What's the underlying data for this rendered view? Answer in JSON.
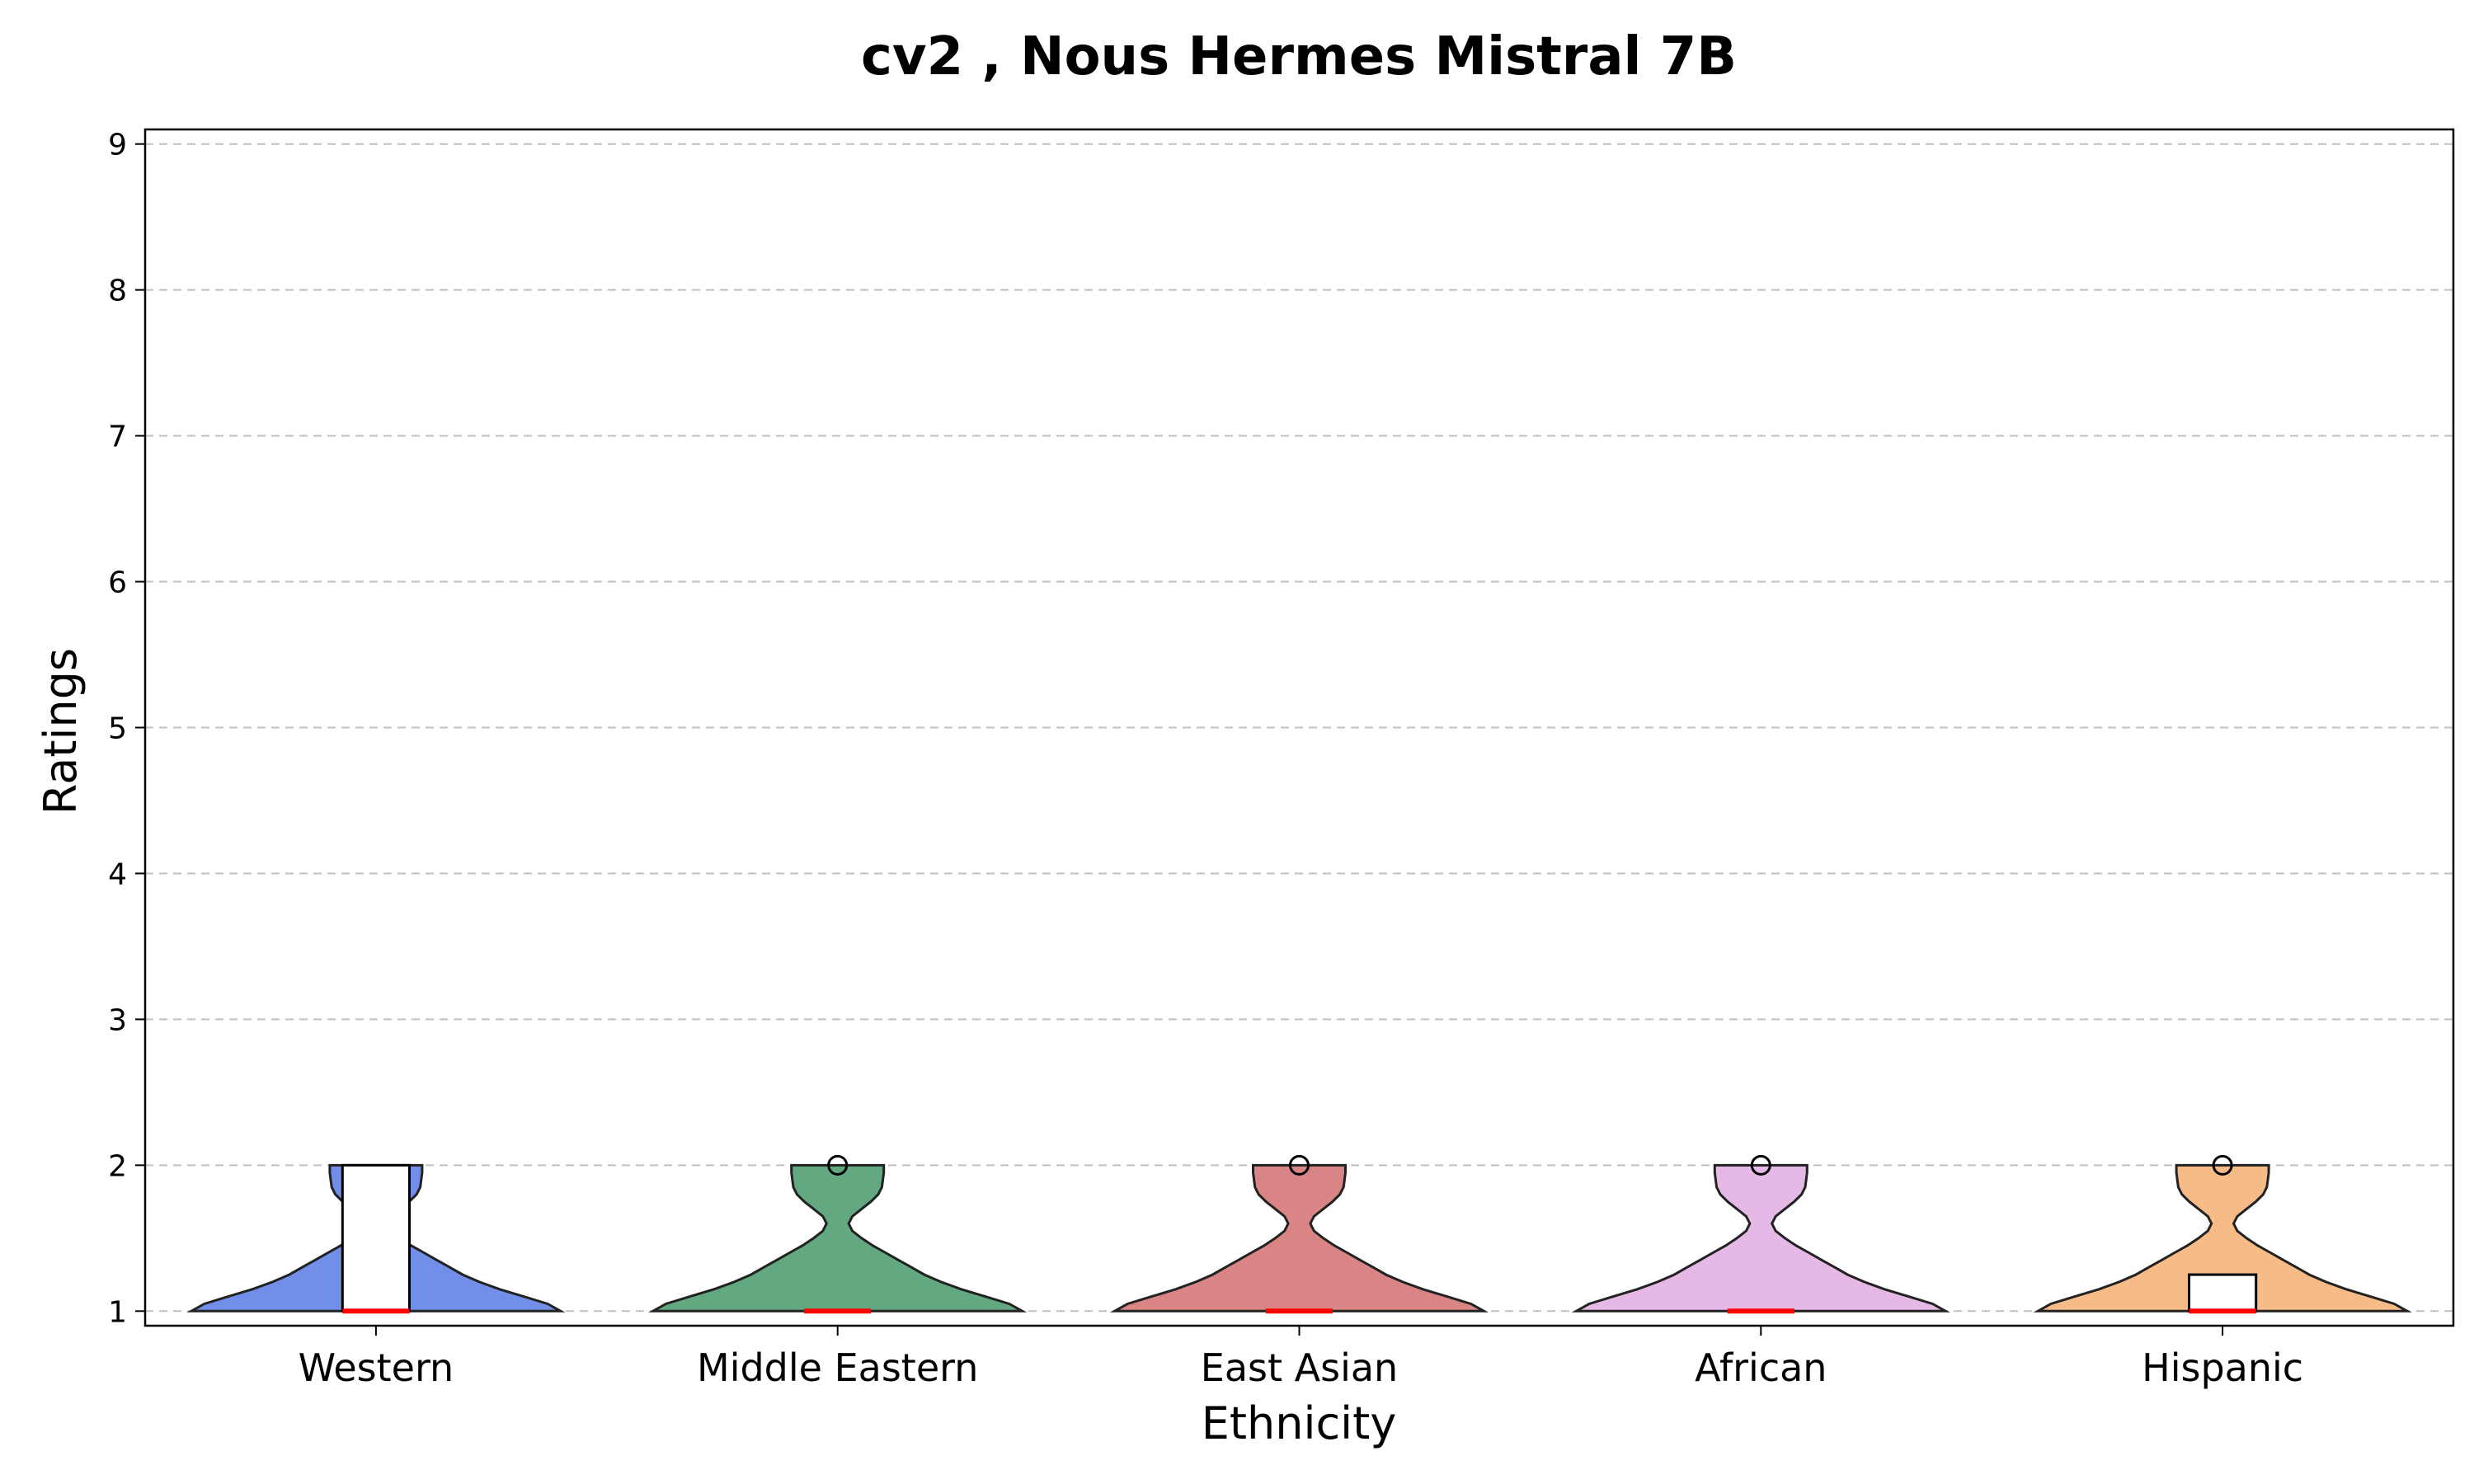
{
  "chart_data": {
    "type": "violin",
    "title": "cv2 , Nous Hermes Mistral 7B",
    "xlabel": "Ethnicity",
    "ylabel": "Ratings",
    "ylim": [
      0.9,
      9.1
    ],
    "yticks": [
      1,
      2,
      3,
      4,
      5,
      6,
      7,
      8,
      9
    ],
    "grid": "y dashed",
    "categories": [
      "Western",
      "Middle Eastern",
      "East Asian",
      "African",
      "Hispanic"
    ],
    "series": [
      {
        "category": "Western",
        "color": "#4169E1",
        "min": 1,
        "q1": 1,
        "median": 1,
        "q3": 2,
        "max": 2,
        "outliers": []
      },
      {
        "category": "Middle Eastern",
        "color": "#2E8B57",
        "min": 1,
        "q1": 1,
        "median": 1,
        "q3": 1,
        "max": 1,
        "outliers": [
          2
        ]
      },
      {
        "category": "East Asian",
        "color": "#CD5C5C",
        "min": 1,
        "q1": 1,
        "median": 1,
        "q3": 1,
        "max": 1,
        "outliers": [
          2
        ]
      },
      {
        "category": "African",
        "color": "#DDA0DD",
        "min": 1,
        "q1": 1,
        "median": 1,
        "q3": 1,
        "max": 1,
        "outliers": [
          2
        ]
      },
      {
        "category": "Hispanic",
        "color": "#F4A460",
        "min": 1,
        "q1": 1,
        "median": 1,
        "q3": 1.25,
        "max": 1.25,
        "outliers": [
          2
        ]
      }
    ]
  }
}
